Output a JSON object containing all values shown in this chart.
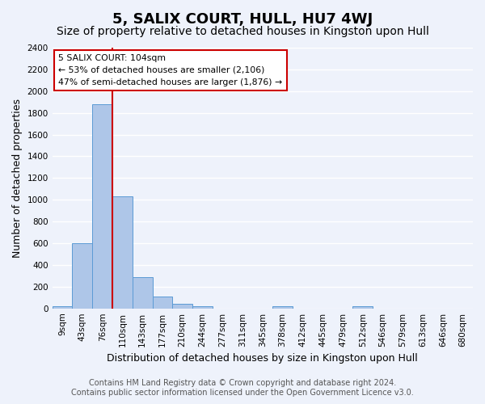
{
  "title": "5, SALIX COURT, HULL, HU7 4WJ",
  "subtitle": "Size of property relative to detached houses in Kingston upon Hull",
  "xlabel": "Distribution of detached houses by size in Kingston upon Hull",
  "ylabel": "Number of detached properties",
  "footer_line1": "Contains HM Land Registry data © Crown copyright and database right 2024.",
  "footer_line2": "Contains public sector information licensed under the Open Government Licence v3.0.",
  "bin_labels": [
    "9sqm",
    "43sqm",
    "76sqm",
    "110sqm",
    "143sqm",
    "177sqm",
    "210sqm",
    "244sqm",
    "277sqm",
    "311sqm",
    "345sqm",
    "378sqm",
    "412sqm",
    "445sqm",
    "479sqm",
    "512sqm",
    "546sqm",
    "579sqm",
    "613sqm",
    "646sqm",
    "680sqm"
  ],
  "bar_values": [
    20,
    600,
    1880,
    1035,
    285,
    110,
    45,
    20,
    0,
    0,
    0,
    20,
    0,
    0,
    0,
    20,
    0,
    0,
    0,
    0,
    0
  ],
  "bar_color": "#aec6e8",
  "bar_edge_color": "#5b9bd5",
  "ylim": [
    0,
    2400
  ],
  "yticks": [
    0,
    200,
    400,
    600,
    800,
    1000,
    1200,
    1400,
    1600,
    1800,
    2000,
    2200,
    2400
  ],
  "vline_x_index": 3,
  "vline_color": "#cc0000",
  "annotation_title": "5 SALIX COURT: 104sqm",
  "annotation_line1": "← 53% of detached houses are smaller (2,106)",
  "annotation_line2": "47% of semi-detached houses are larger (1,876) →",
  "bg_color": "#eef2fb",
  "grid_color": "#ffffff",
  "title_fontsize": 13,
  "subtitle_fontsize": 10,
  "axis_label_fontsize": 9,
  "tick_fontsize": 7.5,
  "footer_fontsize": 7
}
